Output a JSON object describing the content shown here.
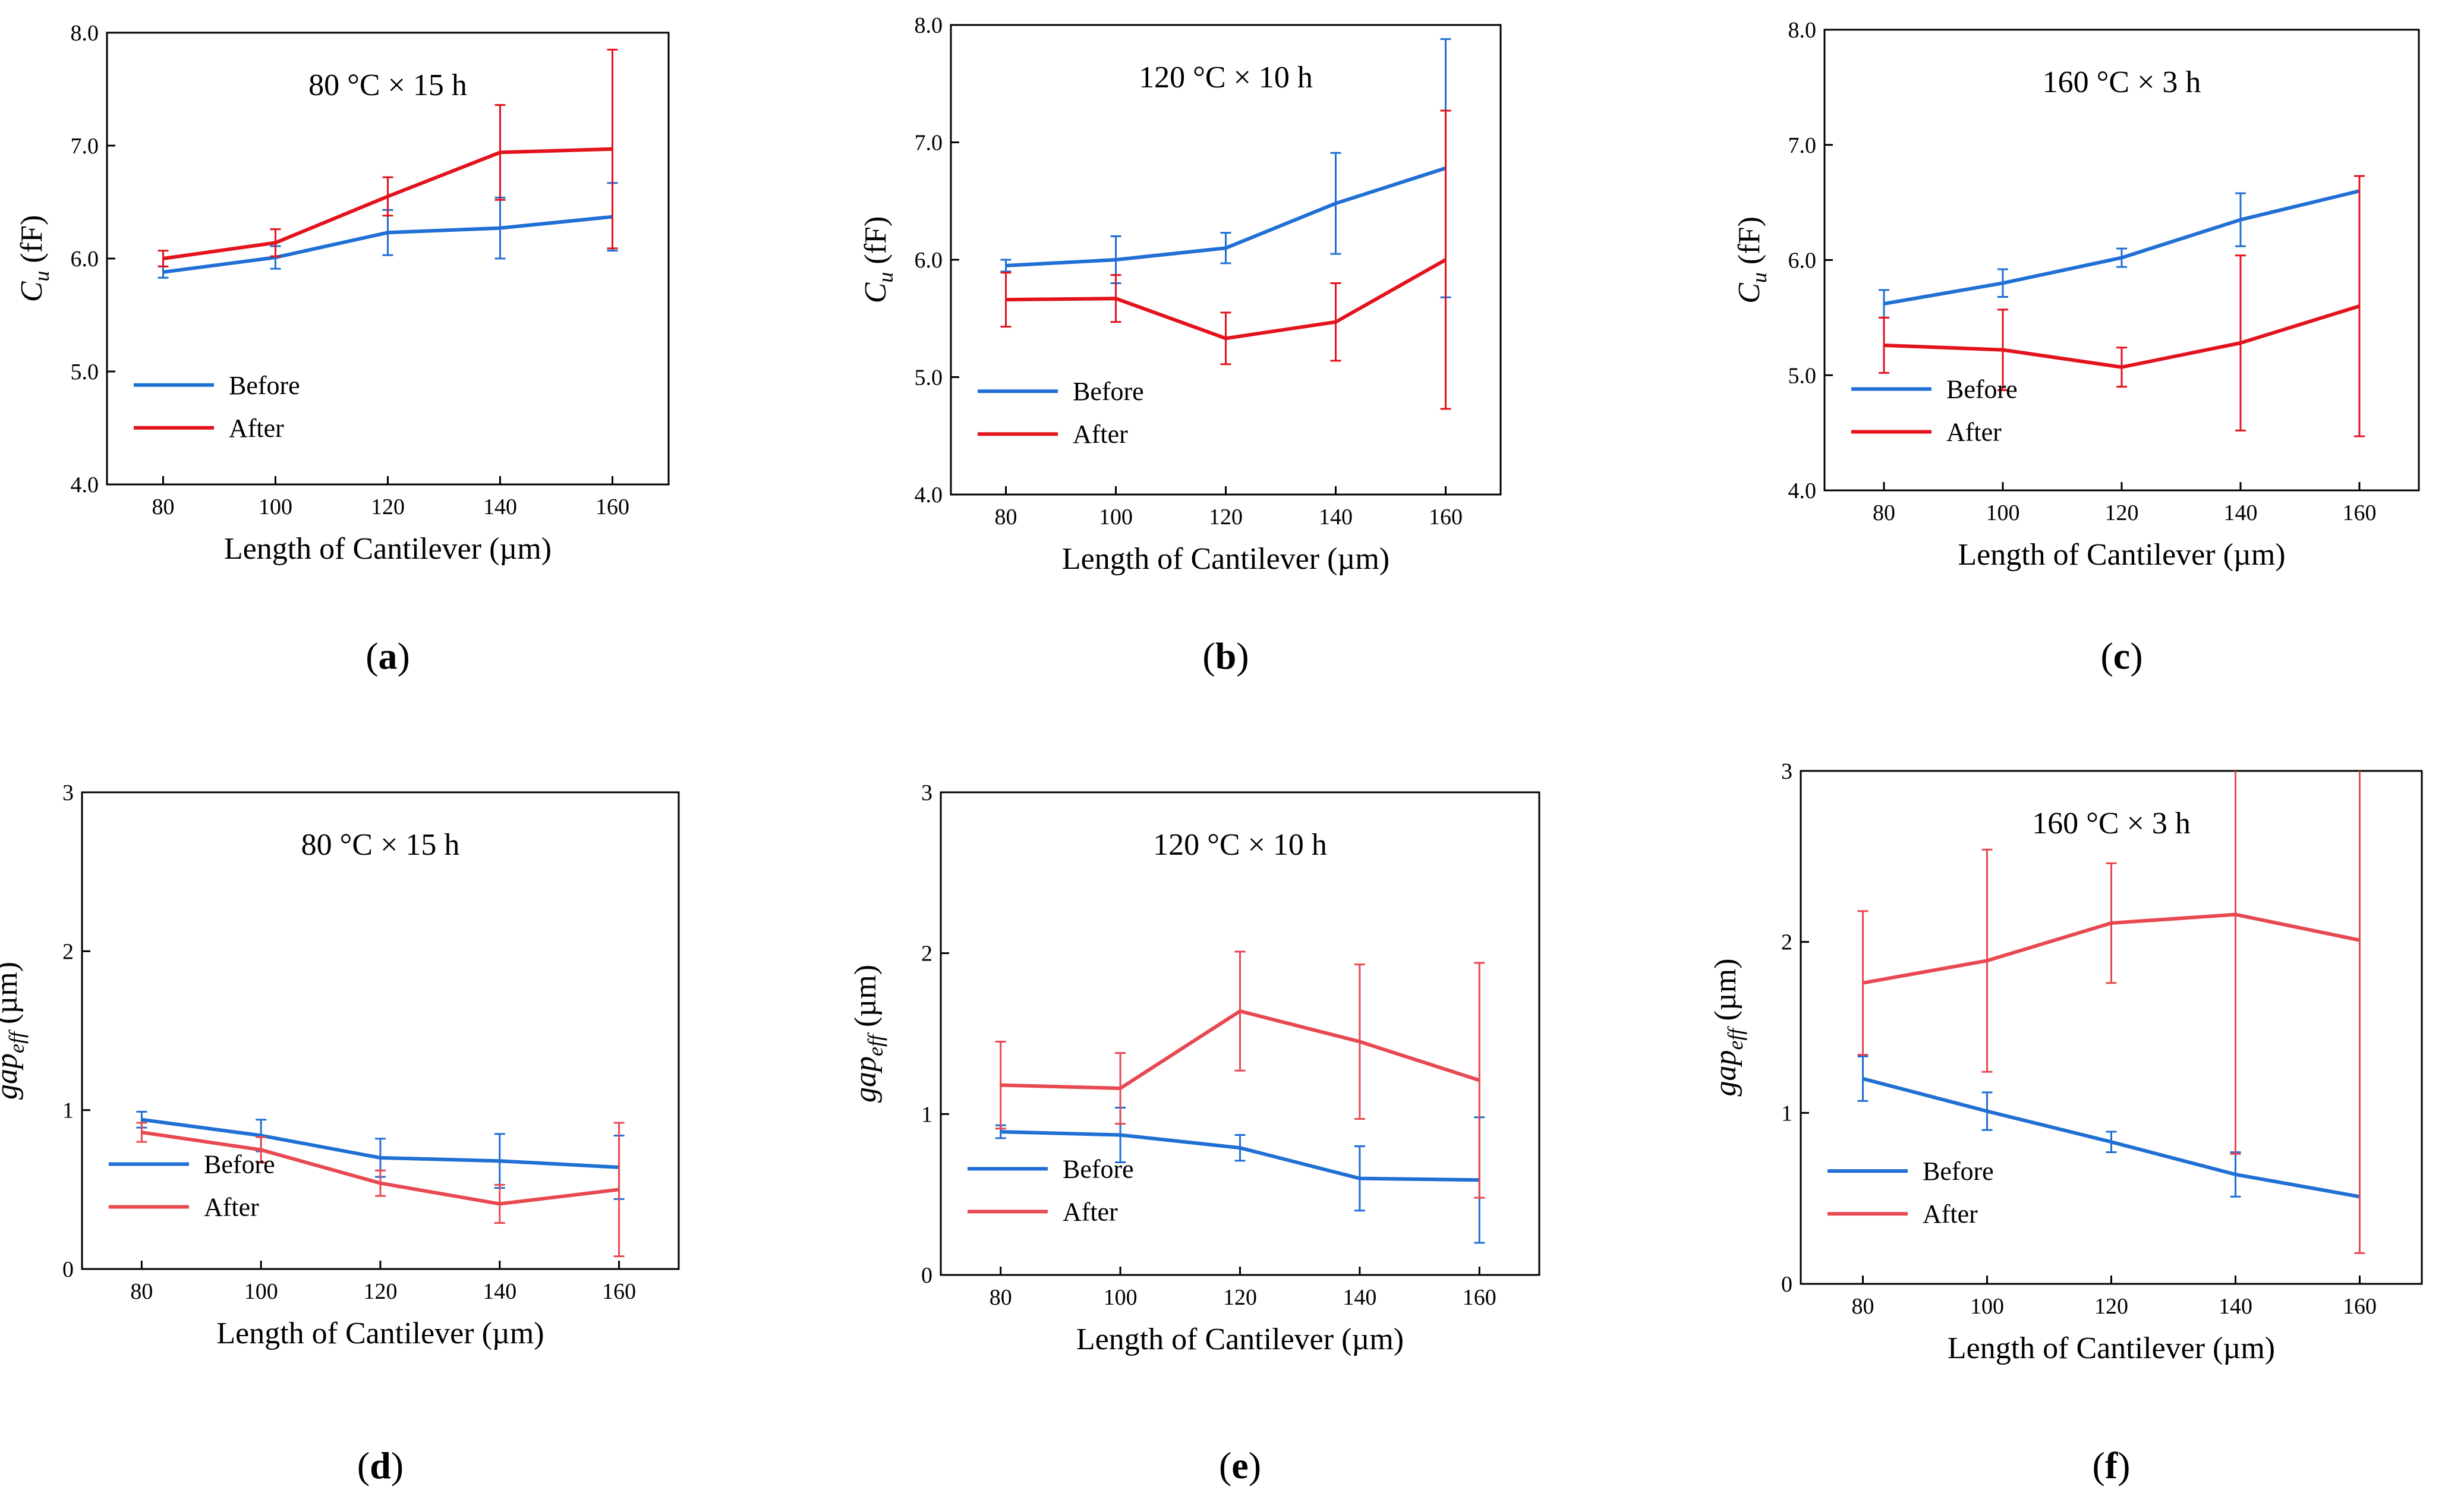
{
  "chart_data": [
    {
      "id": "a",
      "type": "line",
      "label": "a",
      "annotation": "80 °C × 15 h",
      "xlabel": "Length of Cantilever (µm)",
      "ylabel_main": "C",
      "ylabel_sub": "u",
      "ylabel_unit": " (fF)",
      "ylim": [
        4.0,
        8.0
      ],
      "yticks": [
        4.0,
        5.0,
        6.0,
        7.0,
        8.0
      ],
      "ytick_labels": [
        "4.0",
        "5.0",
        "6.0",
        "7.0",
        "8.0"
      ],
      "xlim": [
        70,
        170
      ],
      "xticks": [
        80,
        100,
        120,
        140,
        160
      ],
      "xtick_labels": [
        "80",
        "100",
        "120",
        "140",
        "160"
      ],
      "x": [
        80,
        100,
        120,
        140,
        160
      ],
      "legend_position": "bottom-left",
      "series": [
        {
          "name": "Before",
          "color": "#1f6fd4",
          "values": [
            5.88,
            6.01,
            6.23,
            6.27,
            6.37
          ],
          "err": [
            0.05,
            0.1,
            0.2,
            0.27,
            0.3
          ]
        },
        {
          "name": "After",
          "color": "#e3121c",
          "values": [
            6.0,
            6.14,
            6.55,
            6.94,
            6.97
          ],
          "err": [
            0.07,
            0.12,
            0.17,
            0.42,
            0.88
          ]
        }
      ]
    },
    {
      "id": "b",
      "type": "line",
      "label": "b",
      "annotation": "120 °C × 10 h",
      "xlabel": "Length of Cantilever (µm)",
      "ylabel_main": "C",
      "ylabel_sub": "u",
      "ylabel_unit": " (fF)",
      "ylim": [
        4.0,
        8.0
      ],
      "yticks": [
        4.0,
        5.0,
        6.0,
        7.0,
        8.0
      ],
      "ytick_labels": [
        "4.0",
        "5.0",
        "6.0",
        "7.0",
        "8.0"
      ],
      "xlim": [
        70,
        170
      ],
      "xticks": [
        80,
        100,
        120,
        140,
        160
      ],
      "xtick_labels": [
        "80",
        "100",
        "120",
        "140",
        "160"
      ],
      "x": [
        80,
        100,
        120,
        140,
        160
      ],
      "legend_position": "bottom-left",
      "series": [
        {
          "name": "Before",
          "color": "#1f6fd4",
          "values": [
            5.95,
            6.0,
            6.1,
            6.48,
            6.78
          ],
          "err": [
            0.05,
            0.2,
            0.13,
            0.43,
            1.1
          ]
        },
        {
          "name": "After",
          "color": "#e3121c",
          "values": [
            5.66,
            5.67,
            5.33,
            5.47,
            6.0
          ],
          "err": [
            0.23,
            0.2,
            0.22,
            0.33,
            1.27
          ]
        }
      ]
    },
    {
      "id": "c",
      "type": "line",
      "label": "c",
      "annotation": "160 °C × 3 h",
      "xlabel": "Length of Cantilever (µm)",
      "ylabel_main": "C",
      "ylabel_sub": "u",
      "ylabel_unit": " (fF)",
      "ylim": [
        4.0,
        8.0
      ],
      "yticks": [
        4.0,
        5.0,
        6.0,
        7.0,
        8.0
      ],
      "ytick_labels": [
        "4.0",
        "5.0",
        "6.0",
        "7.0",
        "8.0"
      ],
      "xlim": [
        70,
        170
      ],
      "xticks": [
        80,
        100,
        120,
        140,
        160
      ],
      "xtick_labels": [
        "80",
        "100",
        "120",
        "140",
        "160"
      ],
      "x": [
        80,
        100,
        120,
        140,
        160
      ],
      "legend_position": "bottom-left",
      "series": [
        {
          "name": "Before",
          "color": "#1f6fd4",
          "values": [
            5.62,
            5.8,
            6.02,
            6.35,
            6.6
          ],
          "err": [
            0.12,
            0.12,
            0.08,
            0.23,
            0.0
          ]
        },
        {
          "name": "After",
          "color": "#e3121c",
          "values": [
            5.26,
            5.22,
            5.07,
            5.28,
            5.6
          ],
          "err": [
            0.24,
            0.35,
            0.17,
            0.76,
            1.13
          ]
        }
      ]
    },
    {
      "id": "d",
      "type": "line",
      "label": "d",
      "annotation": "80 °C × 15 h",
      "xlabel": "Length of Cantilever (µm)",
      "ylabel_main": "gap",
      "ylabel_sub": "eff",
      "ylabel_unit": " (µm)",
      "ylim": [
        0,
        3
      ],
      "yticks": [
        0,
        1,
        2,
        3
      ],
      "ytick_labels": [
        "0",
        "1",
        "2",
        "3"
      ],
      "xlim": [
        70,
        170
      ],
      "xticks": [
        80,
        100,
        120,
        140,
        160
      ],
      "xtick_labels": [
        "80",
        "100",
        "120",
        "140",
        "160"
      ],
      "x": [
        80,
        100,
        120,
        140,
        160
      ],
      "legend_position": "bottom-left",
      "series": [
        {
          "name": "Before",
          "color": "#1f6fd4",
          "values": [
            0.94,
            0.84,
            0.7,
            0.68,
            0.64
          ],
          "err": [
            0.05,
            0.1,
            0.12,
            0.17,
            0.2
          ]
        },
        {
          "name": "After",
          "color": "#e84850",
          "values": [
            0.86,
            0.75,
            0.54,
            0.41,
            0.5
          ],
          "err": [
            0.06,
            0.08,
            0.08,
            0.12,
            0.42
          ]
        }
      ]
    },
    {
      "id": "e",
      "type": "line",
      "label": "e",
      "annotation": "120 °C × 10 h",
      "xlabel": "Length of Cantilever (µm)",
      "ylabel_main": "gap",
      "ylabel_sub": "eff",
      "ylabel_unit": " (µm)",
      "ylim": [
        0,
        3
      ],
      "yticks": [
        0,
        1,
        2,
        3
      ],
      "ytick_labels": [
        "0",
        "1",
        "2",
        "3"
      ],
      "xlim": [
        70,
        170
      ],
      "xticks": [
        80,
        100,
        120,
        140,
        160
      ],
      "xtick_labels": [
        "80",
        "100",
        "120",
        "140",
        "160"
      ],
      "x": [
        80,
        100,
        120,
        140,
        160
      ],
      "legend_position": "bottom-left",
      "series": [
        {
          "name": "Before",
          "color": "#1f6fd4",
          "values": [
            0.89,
            0.87,
            0.79,
            0.6,
            0.59
          ],
          "err": [
            0.04,
            0.17,
            0.08,
            0.2,
            0.39
          ]
        },
        {
          "name": "After",
          "color": "#e84850",
          "values": [
            1.18,
            1.16,
            1.64,
            1.45,
            1.21
          ],
          "err": [
            0.27,
            0.22,
            0.37,
            0.48,
            0.73
          ]
        }
      ]
    },
    {
      "id": "f",
      "type": "line",
      "label": "f",
      "annotation": "160 °C × 3 h",
      "xlabel": "Length of Cantilever (µm)",
      "ylabel_main": "gap",
      "ylabel_sub": "eff",
      "ylabel_unit": " (µm)",
      "ylim": [
        0,
        3
      ],
      "yticks": [
        0,
        1,
        2,
        3
      ],
      "ytick_labels": [
        "0",
        "1",
        "2",
        "3"
      ],
      "xlim": [
        70,
        170
      ],
      "xticks": [
        80,
        100,
        120,
        140,
        160
      ],
      "xtick_labels": [
        "80",
        "100",
        "120",
        "140",
        "160"
      ],
      "x": [
        80,
        100,
        120,
        140,
        160
      ],
      "legend_position": "bottom-left",
      "series": [
        {
          "name": "Before",
          "color": "#1f6fd4",
          "values": [
            1.2,
            1.01,
            0.83,
            0.64,
            0.51
          ],
          "err": [
            0.13,
            0.11,
            0.06,
            0.13,
            0.0
          ]
        },
        {
          "name": "After",
          "color": "#e84850",
          "values": [
            1.76,
            1.89,
            2.11,
            2.16,
            2.01
          ],
          "err": [
            0.42,
            0.65,
            0.35,
            1.4,
            1.83
          ]
        }
      ]
    }
  ]
}
